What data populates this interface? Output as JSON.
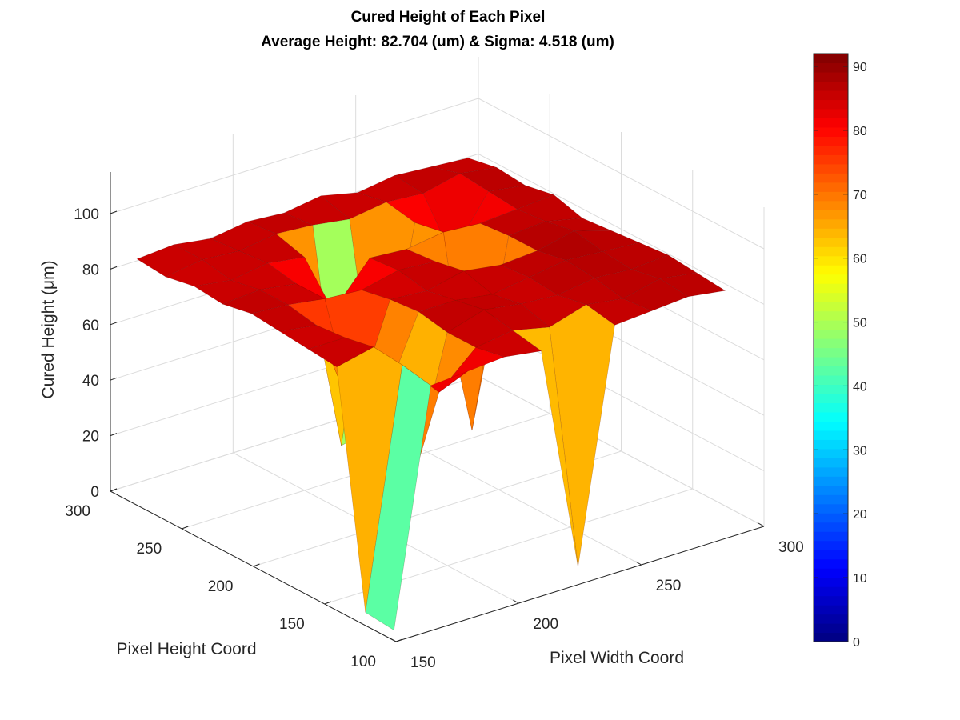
{
  "chart_data": {
    "type": "surface",
    "title": "Cured Height of Each Pixel",
    "subtitle": "Average Height: 82.704 (um) & Sigma: 4.518 (um)",
    "xlabel": "Pixel Width Coord",
    "ylabel": "Pixel Height Coord",
    "zlabel": "Cured Height (μm)",
    "xlim": [
      150,
      300
    ],
    "ylim": [
      100,
      300
    ],
    "zlim": [
      0,
      115
    ],
    "x_ticks": [
      "150",
      "200",
      "250",
      "300"
    ],
    "y_ticks": [
      "100",
      "150",
      "200",
      "250",
      "300"
    ],
    "z_ticks": [
      "0",
      "20",
      "40",
      "60",
      "80",
      "100"
    ],
    "colormap": "jet",
    "clim": [
      0,
      92
    ],
    "colorbar_ticks": [
      "0",
      "10",
      "20",
      "30",
      "40",
      "50",
      "60",
      "70",
      "80",
      "90"
    ],
    "grid": true,
    "x_grid": [
      155,
      170,
      185,
      200,
      215,
      230,
      245,
      260,
      275,
      290
    ],
    "y_grid": [
      110,
      130,
      150,
      170,
      190,
      210,
      230,
      250,
      270,
      290
    ],
    "z_values": [
      [
        0,
        84,
        85,
        86,
        84,
        2,
        85,
        86,
        87,
        85
      ],
      [
        1,
        86,
        72,
        84,
        86,
        83,
        87,
        85,
        88,
        86
      ],
      [
        84,
        87,
        32,
        84,
        88,
        86,
        85,
        87,
        86,
        87
      ],
      [
        85,
        85,
        56,
        86,
        86,
        84,
        86,
        88,
        87,
        86
      ],
      [
        86,
        84,
        48,
        85,
        84,
        87,
        85,
        86,
        89,
        85
      ],
      [
        87,
        86,
        84,
        83,
        86,
        85,
        20,
        86,
        87,
        84
      ],
      [
        85,
        86,
        84,
        70,
        85,
        84,
        86,
        85,
        86,
        87
      ],
      [
        86,
        84,
        86,
        84,
        12,
        15,
        84,
        68,
        87,
        85
      ],
      [
        84,
        86,
        85,
        87,
        86,
        84,
        86,
        85,
        88,
        86
      ],
      [
        85,
        86,
        84,
        86,
        85,
        87,
        84,
        86,
        85,
        84
      ]
    ]
  }
}
